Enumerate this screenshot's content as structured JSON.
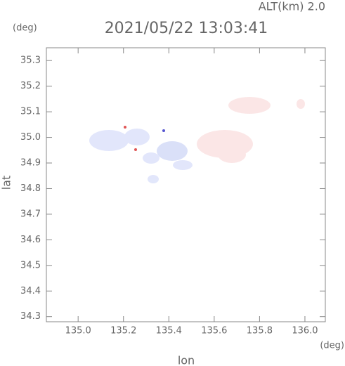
{
  "chart_data": {
    "type": "map",
    "title": "2021/05/22 13:03:41",
    "alt_label": "ALT(km) 2.0",
    "y_unit": "(deg)",
    "x_unit": "(deg)",
    "xlabel": "lon",
    "ylabel": "lat",
    "xlim": [
      134.86,
      136.09
    ],
    "ylim": [
      34.28,
      35.35
    ],
    "xticks": [
      {
        "value": 135,
        "label": "135.0"
      },
      135.2,
      135.4,
      135.6,
      135.8,
      {
        "value": 136,
        "label": "136.0"
      }
    ],
    "yticks": [
      35.3,
      35.2,
      35.1,
      {
        "value": 35,
        "label": "35.0"
      },
      34.9,
      34.8,
      34.7,
      34.6,
      34.5,
      34.4,
      34.3
    ],
    "axis_color": "#888888"
  }
}
